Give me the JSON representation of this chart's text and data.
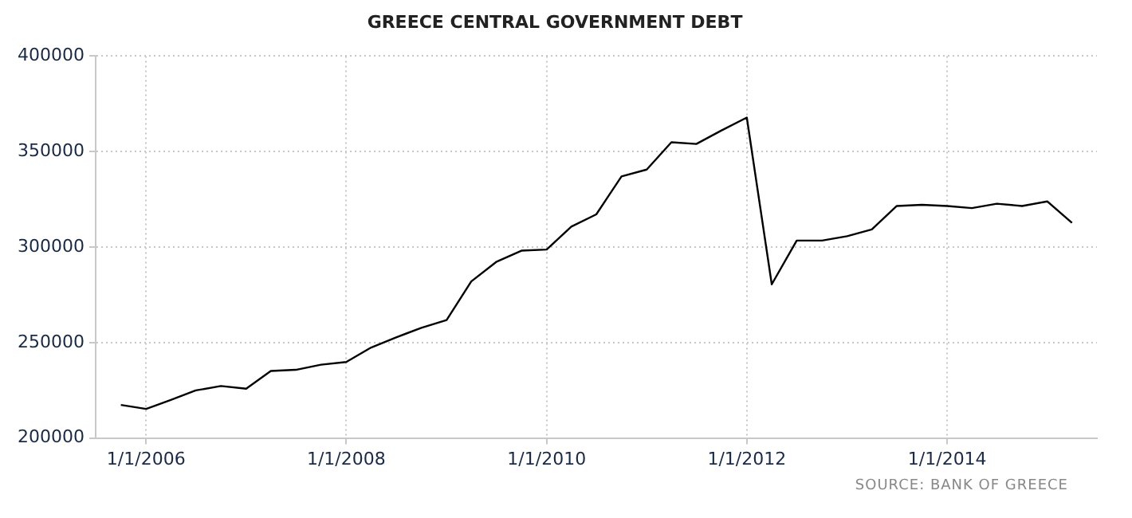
{
  "chart_data": {
    "type": "line",
    "title": "GREECE CENTRAL GOVERNMENT DEBT",
    "x": [
      "2005-10",
      "2006-01",
      "2006-04",
      "2006-07",
      "2006-10",
      "2007-01",
      "2007-04",
      "2007-07",
      "2007-10",
      "2008-01",
      "2008-04",
      "2008-07",
      "2008-10",
      "2009-01",
      "2009-04",
      "2009-07",
      "2009-10",
      "2010-01",
      "2010-04",
      "2010-07",
      "2010-10",
      "2011-01",
      "2011-04",
      "2011-07",
      "2011-10",
      "2012-01",
      "2012-04",
      "2012-07",
      "2012-10",
      "2013-01",
      "2013-04",
      "2013-07",
      "2013-10",
      "2014-01",
      "2014-04",
      "2014-07",
      "2014-10",
      "2015-01",
      "2015-04"
    ],
    "series": [
      {
        "color": "#000000",
        "values": [
          217300,
          215200,
          219900,
          224900,
          227200,
          225800,
          235100,
          235700,
          238400,
          239800,
          247400,
          252700,
          257700,
          261800,
          282000,
          292200,
          298100,
          298700,
          310700,
          317100,
          337000,
          340600,
          354900,
          354000,
          361100,
          367800,
          280500,
          303400,
          303400,
          305700,
          309200,
          321500,
          322100,
          321500,
          320400,
          322700,
          321500,
          323900,
          312700
        ]
      }
    ],
    "xlim": [
      "2005-07",
      "2015-07"
    ],
    "xticks": [
      {
        "value": "2006-01-01",
        "label": "1/1/2006"
      },
      {
        "value": "2008-01-01",
        "label": "1/1/2008"
      },
      {
        "value": "2010-01-01",
        "label": "1/1/2010"
      },
      {
        "value": "2012-01-01",
        "label": "1/1/2012"
      },
      {
        "value": "2014-01-01",
        "label": "1/1/2014"
      }
    ],
    "ylim": [
      200000,
      400000
    ],
    "yticks": [
      200000,
      250000,
      300000,
      350000,
      400000
    ],
    "grid": true,
    "legend": false,
    "marker": "none",
    "line_style": "solid",
    "annotations": [
      "SOURCE: BANK OF GREECE"
    ]
  }
}
